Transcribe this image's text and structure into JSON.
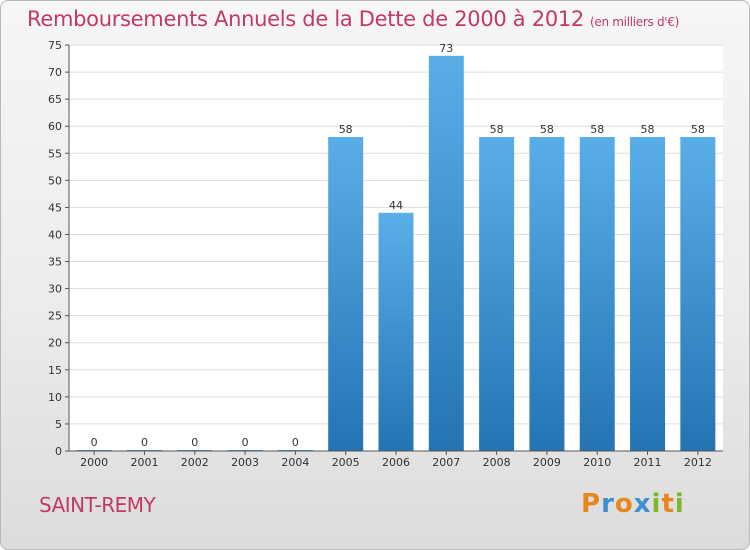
{
  "header": {
    "title": "Remboursements Annuels de la Dette de 2000 à 2012",
    "unit": "(en milliers d'€)"
  },
  "footer": {
    "town": "SAINT-REMY",
    "logo_text": "Proxiti"
  },
  "colors": {
    "title": "#c23a63",
    "bar_top": "#5aaee8",
    "bar_bottom": "#2474b4",
    "logo_letters": [
      "#e8861e",
      "#3e8ed4",
      "#e8861e",
      "#3e8ed4",
      "#7cb82f",
      "#e8861e",
      "#7cb82f"
    ]
  },
  "chart_data": {
    "type": "bar",
    "categories": [
      "2000",
      "2001",
      "2002",
      "2003",
      "2004",
      "2005",
      "2006",
      "2007",
      "2008",
      "2009",
      "2010",
      "2011",
      "2012"
    ],
    "values": [
      0,
      0,
      0,
      0,
      0,
      58,
      44,
      73,
      58,
      58,
      58,
      58,
      58
    ],
    "data_labels": [
      "0",
      "0",
      "0",
      "0",
      "0",
      "58",
      "44",
      "73",
      "58",
      "58",
      "58",
      "58",
      "58"
    ],
    "y_ticks": [
      0,
      5,
      10,
      15,
      20,
      25,
      30,
      35,
      40,
      45,
      50,
      55,
      60,
      65,
      70,
      75
    ],
    "ylim": [
      0,
      75
    ],
    "grid": true,
    "legend": "none"
  }
}
